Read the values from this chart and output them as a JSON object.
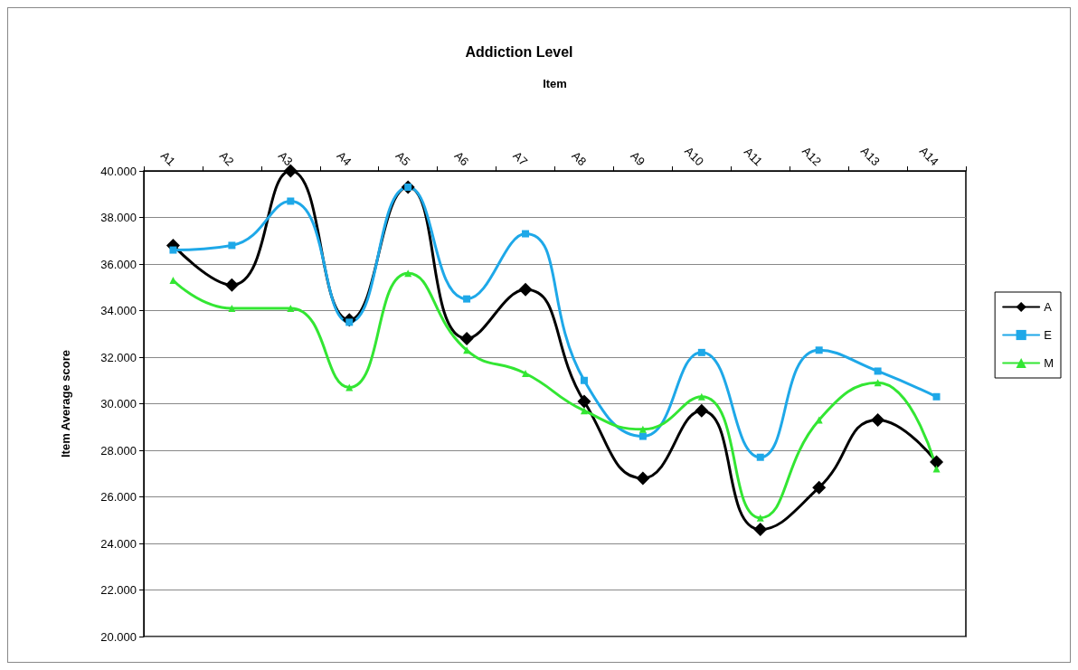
{
  "chart_data": {
    "type": "line",
    "title": "Addiction Level",
    "xlabel": "Item",
    "ylabel": "Item Average score",
    "categories": [
      "A1",
      "A2",
      "A3",
      "A4",
      "A5",
      "A6",
      "A7",
      "A8",
      "A9",
      "A10",
      "A11",
      "A12",
      "A13",
      "A14"
    ],
    "series": [
      {
        "name": "A",
        "color": "#000000",
        "marker": "diamond",
        "values": [
          36.8,
          35.1,
          40.0,
          33.6,
          39.3,
          32.8,
          34.9,
          30.1,
          26.8,
          29.7,
          24.6,
          26.4,
          29.3,
          27.5
        ]
      },
      {
        "name": "E",
        "color": "#1ea8e8",
        "marker": "square",
        "values": [
          36.6,
          36.8,
          38.7,
          33.5,
          39.3,
          34.5,
          37.3,
          31.0,
          28.6,
          32.2,
          27.7,
          32.3,
          31.4,
          30.3
        ]
      },
      {
        "name": "M",
        "color": "#33e633",
        "marker": "triangle",
        "values": [
          35.3,
          34.1,
          34.1,
          30.7,
          35.6,
          32.3,
          31.3,
          29.7,
          28.9,
          30.3,
          25.1,
          29.3,
          30.9,
          27.2
        ]
      }
    ],
    "ylim": [
      20,
      40
    ],
    "yticks": [
      {
        "value": 20,
        "label": "20.000"
      },
      {
        "value": 22,
        "label": "22.000"
      },
      {
        "value": 24,
        "label": "24.000"
      },
      {
        "value": 26,
        "label": "26.000"
      },
      {
        "value": 28,
        "label": "28.000"
      },
      {
        "value": 30,
        "label": "30.000"
      },
      {
        "value": 32,
        "label": "32.000"
      },
      {
        "value": 34,
        "label": "34.000"
      },
      {
        "value": 36,
        "label": "36.000"
      },
      {
        "value": 38,
        "label": "38.000"
      },
      {
        "value": 40,
        "label": "40.000"
      }
    ],
    "grid": "y",
    "legend": "right",
    "line_style": "solid"
  }
}
